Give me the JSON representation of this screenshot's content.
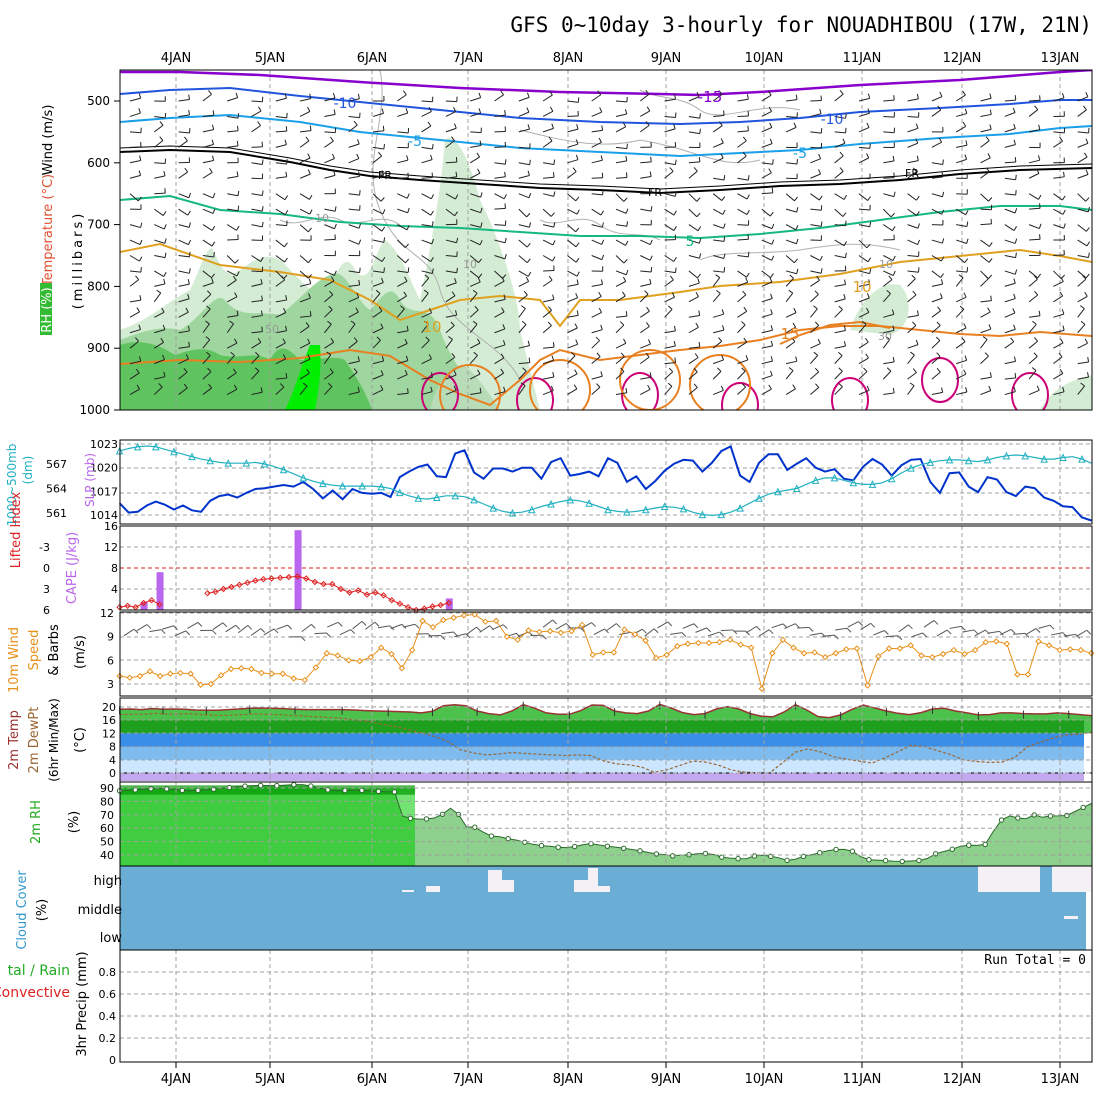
{
  "title": "GFS 0~10day 3-hourly for NOUADHIBOU (17W, 21N)",
  "dates": [
    "4JAN",
    "5JAN",
    "6JAN",
    "7JAN",
    "8JAN",
    "9JAN",
    "10JAN",
    "11JAN",
    "12JAN",
    "13JAN"
  ],
  "colors": {
    "grid": "#a0a0a0",
    "rh_light": "#d4ecd4",
    "rh_mid": "#9fd69f",
    "rh_dark": "#5fc45f",
    "rh_bright": "#00ee00",
    "temp_m15": "#8800cc",
    "temp_m10": "#2255dd",
    "temp_m5": "#1aa0e8",
    "temp_fr": "#000000",
    "temp_5": "#15b880",
    "temp_10": "#e0a020",
    "temp_15": "#e87f20",
    "temp_20": "#cc0077",
    "slp": "#0033cc",
    "thickness": "#20b0c0",
    "lifted": "#dd2222",
    "cape": "#bb66ee",
    "wind10": "#e8901a",
    "barbs": "#555555",
    "temp2m": "#993333",
    "dewpt": "#996633",
    "rh2m": "#33aa33",
    "cloud": "#6aaed6",
    "cloud_white": "#f4f0f6"
  },
  "upper_panel": {
    "labels": [
      "Wind (m/s)",
      "Temperature (°C)",
      "RH (%)",
      "(millibars)"
    ],
    "yticks": [
      "500",
      "600",
      "700",
      "800",
      "900",
      "1000"
    ],
    "contour_labels": [
      "-15",
      "-10",
      "-10",
      "-5",
      "-5",
      "FR",
      "FR",
      "FR",
      "5",
      "10",
      "10",
      "15",
      "-10",
      "10",
      "10",
      "30",
      "50"
    ]
  },
  "chart_data": [
    {
      "type": "line",
      "title": "SLP (mb) / 1000~500mb Thickness (dm)",
      "ylabel_left": "1000~500mb Thickness (dm)",
      "ylabel_right": "SLP (mb)",
      "left_ticks": [
        "567",
        "564",
        "561"
      ],
      "right_ticks": [
        "1023",
        "1020",
        "1017",
        "1014"
      ],
      "series": [
        {
          "name": "SLP (mb)",
          "values": [
            1015.5,
            1014.3,
            1014.4,
            1015.2,
            1015.7,
            1015.3,
            1014.7,
            1015.2,
            1014.6,
            1014.4,
            1015.8,
            1016.4,
            1016.6,
            1016.2,
            1016.8,
            1017.3,
            1017.4,
            1017.6,
            1017.8,
            1017.6,
            1018.2,
            1017.3,
            1016.1,
            1017.1,
            1016.0,
            1017.3,
            1016.8,
            1016.7,
            1016.8,
            1016.3,
            1018.8,
            1019.5,
            1020.1,
            1020.4,
            1018.9,
            1018.8,
            1021.8,
            1022.2,
            1019.4,
            1018.6,
            1019.9,
            1019.9,
            1019.5,
            1020.0,
            1020.0,
            1018.6,
            1020.7,
            1021.2,
            1019.0,
            1019.2,
            1019.5,
            1018.9,
            1021.2,
            1020.6,
            1018.2,
            1018.9,
            1017.3,
            1018.3,
            1019.6,
            1020.5,
            1021.0,
            1020.9,
            1019.5,
            1020.6,
            1022.1,
            1022.7,
            1019.0,
            1018.2,
            1020.6,
            1021.7,
            1021.7,
            1019.7,
            1020.5,
            1021.2,
            1020.0,
            1019.5,
            1019.8,
            1018.6,
            1018.4,
            1020.1,
            1021.1,
            1020.4,
            1019.0,
            1020.3,
            1021.0,
            1021.1,
            1018.2,
            1016.8,
            1019.3,
            1019.4,
            1017.6,
            1016.9,
            1018.8,
            1018.5,
            1016.9,
            1016.4,
            1017.6,
            1017.4,
            1016.2,
            1015.8,
            1015.1,
            1015.0,
            1013.7,
            1013.3
          ]
        },
        {
          "name": "1000~500mb Thickness (dm)",
          "values": [
            568.6,
            568.9,
            569.1,
            569.2,
            569.1,
            568.8,
            568.5,
            568.2,
            567.9,
            567.6,
            567.4,
            567.2,
            567.1,
            567.1,
            567.1,
            567.2,
            567.0,
            566.7,
            566.3,
            565.8,
            565.3,
            564.9,
            564.6,
            564.4,
            564.3,
            564.3,
            564.3,
            564.3,
            564.2,
            564.0,
            563.5,
            563.1,
            562.8,
            562.7,
            562.9,
            563.1,
            563.1,
            563.0,
            562.6,
            562.1,
            561.6,
            561.2,
            561.0,
            561.1,
            561.4,
            561.8,
            562.1,
            562.4,
            562.6,
            562.5,
            562.2,
            561.8,
            561.4,
            561.2,
            561.1,
            561.2,
            561.4,
            561.6,
            561.8,
            561.7,
            561.5,
            561.1,
            560.8,
            560.7,
            560.8,
            561.1,
            561.6,
            562.2,
            562.8,
            563.3,
            563.6,
            563.8,
            564.0,
            564.5,
            565.0,
            565.3,
            565.3,
            565.0,
            564.7,
            564.5,
            564.5,
            564.7,
            565.2,
            565.9,
            566.5,
            566.9,
            567.2,
            567.4,
            567.5,
            567.5,
            567.4,
            567.3,
            567.5,
            567.8,
            568.0,
            568.1,
            568.0,
            567.8,
            567.6,
            567.6,
            567.8,
            567.9,
            567.6,
            567.1
          ]
        }
      ]
    },
    {
      "type": "bar",
      "title": "Lifted Index / CAPE (J/kg)",
      "ylabel_left": "Lifted Index",
      "ylabel_right": "CAPE (J/kg)",
      "left_ticks": [
        "-3",
        "0",
        "3",
        "6"
      ],
      "right_ticks": [
        "16",
        "12",
        "8",
        "4"
      ],
      "series": [
        {
          "name": "CAPE (J/kg)",
          "values": [
            0,
            0,
            0,
            1.5,
            0,
            7.2,
            0,
            0,
            0,
            0,
            0,
            0,
            0,
            0,
            0,
            0,
            0,
            0,
            0,
            0,
            0,
            0,
            15.2,
            0,
            0,
            0,
            0,
            0,
            0,
            0,
            0,
            0,
            0,
            0,
            0,
            0,
            0,
            0,
            0,
            0,
            2.2
          ]
        },
        {
          "name": "Lifted Index",
          "values": [
            5.6,
            5.4,
            5.6,
            5.0,
            4.6,
            5.2,
            null,
            null,
            null,
            null,
            null,
            3.6,
            3.4,
            3.0,
            2.7,
            2.4,
            2.1,
            1.8,
            1.6,
            1.5,
            1.4,
            1.3,
            1.2,
            1.5,
            2.0,
            2.3,
            2.3,
            3.0,
            3.5,
            3.2,
            3.8,
            3.5,
            3.9,
            4.6,
            5.1,
            5.6,
            6.0,
            5.8,
            5.5,
            5.3,
            5.0
          ]
        }
      ]
    },
    {
      "type": "line",
      "title": "10m Wind Speed & Barbs (m/s)",
      "ylabel": "10m Wind Speed & Barbs (m/s)",
      "yticks": [
        "12",
        "9",
        "6",
        "3"
      ],
      "ylim": [
        1,
        12
      ],
      "series": [
        {
          "name": "10m Wind Speed",
          "values": [
            4.0,
            3.8,
            4.0,
            4.6,
            4.0,
            4.3,
            4.4,
            4.3,
            2.9,
            3.0,
            4.1,
            4.9,
            5.0,
            4.9,
            4.4,
            4.3,
            4.3,
            3.7,
            3.5,
            5.1,
            6.9,
            6.6,
            6.0,
            5.9,
            6.4,
            7.6,
            6.8,
            5.0,
            7.3,
            11.0,
            10.2,
            11.1,
            11.4,
            11.7,
            11.8,
            10.9,
            11.0,
            9.0,
            8.6,
            9.8,
            9.6,
            9.7,
            9.5,
            9.7,
            10.5,
            6.7,
            7.0,
            7.0,
            9.9,
            9.3,
            8.5,
            6.3,
            6.7,
            7.8,
            8.1,
            8.2,
            8.2,
            8.3,
            8.6,
            8.0,
            7.6,
            2.4,
            6.9,
            8.6,
            7.6,
            6.9,
            7.0,
            6.4,
            6.9,
            7.4,
            7.5,
            2.8,
            6.5,
            7.5,
            7.5,
            7.9,
            6.6,
            6.4,
            6.8,
            7.3,
            6.8,
            7.3,
            8.3,
            8.4,
            8.1,
            4.2,
            4.2,
            8.4,
            7.9,
            7.3,
            7.4,
            7.3,
            6.9
          ]
        }
      ]
    },
    {
      "type": "area",
      "title": "2m Temp / 2m DewPt (6hr Min/Max) (°C)",
      "ylabel": "2m Temp 2m DewPt (6hr Min/Max) (°C)",
      "yticks": [
        "20",
        "16",
        "12",
        "8",
        "4",
        "0"
      ],
      "series": [
        {
          "name": "2m Temp",
          "values": [
            19.3,
            19.4,
            19.2,
            19.5,
            19.3,
            19.4,
            19.3,
            19.1,
            19.0,
            19.0,
            19.2,
            19.4,
            19.6,
            19.7,
            19.6,
            19.5,
            19.3,
            19.2,
            19.2,
            19.2,
            19.2,
            19.1,
            18.9,
            18.8,
            18.7,
            18.6,
            18.5,
            18.2,
            18.7,
            20.4,
            20.7,
            20.4,
            18.8,
            18.0,
            17.6,
            18.8,
            20.7,
            19.6,
            18.2,
            17.8,
            17.8,
            18.9,
            20.6,
            20.5,
            18.8,
            18.2,
            18.0,
            18.8,
            20.8,
            19.7,
            18.3,
            17.7,
            18.0,
            19.4,
            20.1,
            19.4,
            18.0,
            17.2,
            17.0,
            18.5,
            20.7,
            19.1,
            17.1,
            16.8,
            17.6,
            19.3,
            20.6,
            19.7,
            18.8,
            18.1,
            17.7,
            18.3,
            19.4,
            19.6,
            18.8,
            18.2,
            17.6,
            17.7,
            18.2,
            18.2,
            18.0,
            17.9,
            17.9,
            18.2,
            18.0,
            17.7,
            17.4
          ]
        },
        {
          "name": "2m DewPt",
          "values": [
            17.7,
            17.8,
            17.8,
            18.1,
            17.8,
            17.9,
            17.9,
            17.6,
            17.5,
            17.5,
            17.7,
            17.9,
            17.8,
            17.7,
            17.4,
            17.2,
            17.0,
            16.8,
            16.4,
            15.9,
            15.4,
            14.6,
            13.9,
            13.0,
            12.0,
            11.0,
            9.5,
            7.0,
            6.1,
            5.5,
            5.8,
            6.2,
            5.9,
            5.7,
            5.5,
            5.3,
            5.5,
            5.3,
            3.7,
            2.8,
            2.5,
            1.8,
            0.2,
            1.0,
            2.3,
            3.6,
            3.3,
            2.4,
            0.9,
            0.3,
            0.1,
            0.0,
            3.1,
            6.3,
            7.3,
            6.4,
            4.9,
            4.2,
            3.6,
            3.0,
            4.6,
            6.5,
            8.4,
            8.0,
            6.8,
            5.6,
            4.0,
            3.5,
            3.2,
            3.3,
            4.7,
            7.9,
            9.3,
            10.6,
            11.5,
            11.8,
            12.3
          ]
        }
      ]
    },
    {
      "type": "area",
      "title": "2m RH (%)",
      "ylabel": "2m RH (%)",
      "yticks": [
        "90",
        "80",
        "70",
        "60",
        "50",
        "40"
      ],
      "series": [
        {
          "name": "2m RH",
          "values": [
            87.9,
            88.2,
            88.6,
            89.0,
            89.5,
            89.7,
            89.3,
            88.9,
            88.2,
            88.0,
            88.2,
            88.6,
            89.1,
            89.7,
            90.3,
            90.9,
            91.4,
            91.8,
            91.9,
            91.9,
            91.8,
            92.2,
            92.5,
            92.5,
            91.5,
            89.8,
            88.6,
            88.0,
            88.1,
            88.5,
            88.2,
            87.8,
            87.5,
            87.2,
            87.1,
            69.1,
            67.3,
            66.8,
            66.9,
            67.6,
            70.4,
            74.9,
            70.3,
            61.0,
            60.7,
            57.1,
            54.1,
            53.6,
            52.2,
            51.1,
            49.5,
            48.0,
            47.0,
            46.5,
            45.8,
            45.5,
            46.3,
            47.6,
            48.5,
            47.5,
            46.6,
            45.9,
            45.0,
            44.1,
            43.1,
            41.9,
            40.8,
            40.3,
            39.4,
            39.9,
            40.2,
            40.9,
            41.1,
            40.4,
            38.4,
            37.7,
            37.3,
            37.2,
            39.3,
            39.8,
            39.0,
            37.9,
            36.0,
            36.9,
            39.0,
            40.2,
            41.7,
            43.1,
            44.1,
            44.2,
            42.8,
            38.8,
            36.5,
            36.2,
            35.8,
            35.3,
            35.2,
            35.5,
            35.9,
            37.4,
            40.9,
            42.6,
            44.3,
            46.5,
            47.3,
            47.2,
            47.9,
            57.6,
            66.1,
            69.2,
            67.6,
            67.1,
            69.9,
            68.1,
            69.1,
            69.2,
            69.5,
            72.5,
            75.5,
            78.4
          ]
        }
      ]
    },
    {
      "type": "heatmap",
      "title": "Cloud Cover (%)",
      "ylabel": "Cloud Cover (%)",
      "rows": [
        "high",
        "middle",
        "low"
      ]
    },
    {
      "type": "bar",
      "title": "3hr Precip (mm)",
      "ylabel": "3hr Precip (mm)",
      "left_labels": [
        "tal / Rain",
        "Convective"
      ],
      "yticks": [
        "0.8",
        "0.6",
        "0.4",
        "0.2",
        "0"
      ],
      "ylim": [
        0,
        0.95
      ],
      "annotation": "Run Total = 0",
      "series": [
        {
          "name": "3hr Precip",
          "values": []
        }
      ]
    }
  ]
}
